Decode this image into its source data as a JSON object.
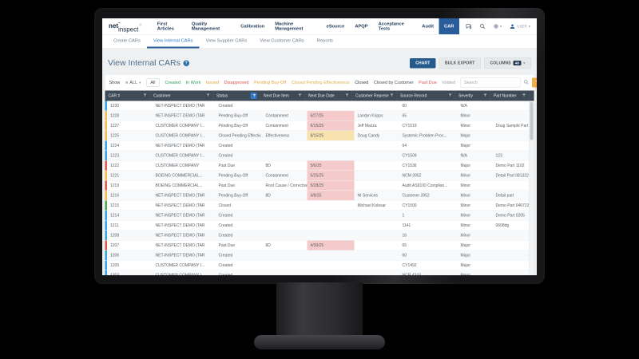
{
  "brand": {
    "bold": "net",
    "rest": "-inspect",
    "mark": "®"
  },
  "nav": {
    "items": [
      "First Articles",
      "Quality Management",
      "Calibration",
      "Machine Management",
      "eSource",
      "APQP",
      "Acceptance Tests",
      "Audit",
      "CAR"
    ],
    "active_item": "CAR",
    "user_label": "USER"
  },
  "tabs": {
    "items": [
      "Create CARs",
      "View Internal CARs",
      "View Supplier CARs",
      "View Customer CARs",
      "Reports"
    ],
    "active": "View Internal CARs"
  },
  "page": {
    "title": "View Internal CARs",
    "help_glyph": "?",
    "chart_button": "CHART",
    "bulk_export_button": "BULK EXPORT",
    "columns_button": "COLUMNS",
    "columns_count": "48"
  },
  "filters": {
    "show_label": "Show",
    "show_value": "ALL",
    "pills": [
      {
        "label": "All",
        "color": "#444444",
        "style": "box"
      },
      {
        "label": "Created",
        "color": "#2e9e5b"
      },
      {
        "label": "In Work",
        "color": "#2e9e5b"
      },
      {
        "label": "Issued",
        "color": "#e8a33d"
      },
      {
        "label": "Disapproved",
        "color": "#d9534f"
      },
      {
        "label": "Pending Buy-Off",
        "color": "#e8a33d"
      },
      {
        "label": "Closed Pending Effectiveness",
        "color": "#d8b24a"
      },
      {
        "label": "Closed",
        "color": "#3a3f44"
      },
      {
        "label": "Closed by Customer",
        "color": "#4a5056"
      },
      {
        "label": "Past Due",
        "color": "#e05252"
      },
      {
        "label": "Voided",
        "color": "#9aa0a6"
      }
    ],
    "search_placeholder": "Search"
  },
  "table": {
    "columns": [
      {
        "label": "CAR #",
        "filter_active": false
      },
      {
        "label": "Customer",
        "filter_active": false
      },
      {
        "label": "Status",
        "filter_active": true
      },
      {
        "label": "Next Due Item",
        "filter_active": false
      },
      {
        "label": "Next Due Date",
        "filter_active": false
      },
      {
        "label": "Customer Representa...",
        "filter_active": false
      },
      {
        "label": "Source Record",
        "filter_active": false
      },
      {
        "label": "Severity",
        "filter_active": false
      },
      {
        "label": "Part Number",
        "filter_active": false
      }
    ],
    "rows": [
      {
        "car": "1230",
        "customer": "NET-INSPECT DEMO (TAR",
        "status": "Created",
        "next_due_item": "",
        "next_due_date": "",
        "due_bg": "",
        "rep": "",
        "source": "60",
        "severity": "N/A",
        "part": "",
        "stripe": "blue"
      },
      {
        "car": "1228",
        "customer": "NET-INSPECT DEMO (TAR",
        "status": "Pending Buy-Off",
        "next_due_item": "Containment",
        "next_due_date": "6/27/25",
        "due_bg": "pink",
        "rep": "Landyn Kripps",
        "source": "65",
        "severity": "Minor",
        "part": "",
        "stripe": "yellow"
      },
      {
        "car": "1227",
        "customer": "CUSTOMER COMPANY I...",
        "status": "Pending Buy-Off",
        "next_due_item": "Containment",
        "next_due_date": "6/15/25",
        "due_bg": "pink",
        "rep": "Jeff Mazza",
        "source": "CY1519",
        "severity": "Minor",
        "part": "Doug Sample Part 20",
        "stripe": "yellow"
      },
      {
        "car": "1225",
        "customer": "CUSTOMER COMPANY I...",
        "status": "Closed Pending Effectiv...",
        "next_due_item": "Effectiveness",
        "next_due_date": "8/15/25",
        "due_bg": "yellow",
        "rep": "Doug Candy",
        "source": "Systemic Problem Proc...",
        "severity": "Major",
        "part": "",
        "stripe": "yellow"
      },
      {
        "car": "1224",
        "customer": "NET-INSPECT DEMO (TAR",
        "status": "Created",
        "next_due_item": "",
        "next_due_date": "",
        "due_bg": "",
        "rep": "",
        "source": "64",
        "severity": "Major",
        "part": "",
        "stripe": "blue"
      },
      {
        "car": "1223",
        "customer": "CUSTOMER COMPANY I...",
        "status": "Created",
        "next_due_item": "",
        "next_due_date": "",
        "due_bg": "",
        "rep": "",
        "source": "CY1509",
        "severity": "N/A",
        "part": "123",
        "stripe": "blue"
      },
      {
        "car": "1222",
        "customer": "CUSTOMER COMPANY",
        "status": "Past Due",
        "next_due_item": "8D",
        "next_due_date": "5/6/25",
        "due_bg": "pink",
        "rep": "",
        "source": "CY1536",
        "severity": "Major",
        "part": "Demo Part 1102",
        "stripe": "red"
      },
      {
        "car": "1221",
        "customer": "BOEING COMMERCIAL...",
        "status": "Pending Buy-Off",
        "next_due_item": "Containment",
        "next_due_date": "5/25/25",
        "due_bg": "pink",
        "rep": "",
        "source": "NCM 3952",
        "severity": "Minor",
        "part": "Detail Part 08132242",
        "stripe": "yellow"
      },
      {
        "car": "1219",
        "customer": "BOEING COMMERCIAL...",
        "status": "Past Due",
        "next_due_item": "Root Cause / Corrective...",
        "next_due_date": "5/28/25",
        "due_bg": "pink",
        "rep": "",
        "source": "Audit AS9100 Complian...",
        "severity": "Minor",
        "part": "",
        "stripe": "red"
      },
      {
        "car": "1216",
        "customer": "NET-INSPECT DEMO (TAR",
        "status": "Pending Buy-Off",
        "next_due_item": "8D",
        "next_due_date": "4/8/25",
        "due_bg": "pink",
        "rep": "NI Services",
        "source": "Customer 3952",
        "severity": "Minor",
        "part": "Detail part",
        "stripe": "yellow"
      },
      {
        "car": "1215",
        "customer": "NET-INSPECT DEMO (TAR",
        "status": "Closed",
        "next_due_item": "",
        "next_due_date": "",
        "due_bg": "",
        "rep": "Michael Kolesar",
        "source": "CY1500",
        "severity": "Minor",
        "part": "Demo Part 040723/5",
        "stripe": "green"
      },
      {
        "car": "1214",
        "customer": "NET-INSPECT DEMO (TAR",
        "status": "Created",
        "next_due_item": "",
        "next_due_date": "",
        "due_bg": "",
        "rep": "",
        "source": "1",
        "severity": "Minor",
        "part": "Demo Part 0205",
        "stripe": "blue"
      },
      {
        "car": "1211",
        "customer": "NET-INSPECT DEMO (TAR",
        "status": "Created",
        "next_due_item": "",
        "next_due_date": "",
        "due_bg": "",
        "rep": "",
        "source": "1141",
        "severity": "Minor",
        "part": "0608dg",
        "stripe": "blue"
      },
      {
        "car": "1208",
        "customer": "NET-INSPECT DEMO (TAR",
        "status": "Created",
        "next_due_item": "",
        "next_due_date": "",
        "due_bg": "",
        "rep": "",
        "source": "16",
        "severity": "Minor",
        "part": "",
        "stripe": "blue"
      },
      {
        "car": "1207",
        "customer": "NET-INSPECT DEMO (TAR",
        "status": "Past Due",
        "next_due_item": "8D",
        "next_due_date": "4/30/25",
        "due_bg": "pink",
        "rep": "",
        "source": "65",
        "severity": "Major",
        "part": "",
        "stripe": "red"
      },
      {
        "car": "1206",
        "customer": "NET-INSPECT DEMO (TAR",
        "status": "Created",
        "next_due_item": "",
        "next_due_date": "",
        "due_bg": "",
        "rep": "",
        "source": "60",
        "severity": "Major",
        "part": "",
        "stripe": "blue"
      },
      {
        "car": "1205",
        "customer": "CUSTOMER COMPANY I...",
        "status": "Created",
        "next_due_item": "",
        "next_due_date": "",
        "due_bg": "",
        "rep": "",
        "source": "CY1492",
        "severity": "Major",
        "part": "",
        "stripe": "blue"
      },
      {
        "car": "1203",
        "customer": "CUSTOMER COMPANY I...",
        "status": "Created",
        "next_due_item": "",
        "next_due_date": "",
        "due_bg": "",
        "rep": "",
        "source": "NCR 4243",
        "severity": "Major",
        "part": "",
        "stripe": "blue"
      }
    ]
  },
  "colors": {
    "accent_blue": "#2a5c9b",
    "header_bg": "#3e4a56",
    "filter_button_yellow": "#f0ad4e",
    "stripe_blue": "#35a7dd",
    "stripe_yellow": "#f2c14e",
    "stripe_red": "#e2574c",
    "stripe_green": "#49a75a",
    "due_pink": "#f5caca",
    "due_yellow": "#f8e3ae"
  },
  "icons": {
    "caret": "▾",
    "list": "≡"
  }
}
